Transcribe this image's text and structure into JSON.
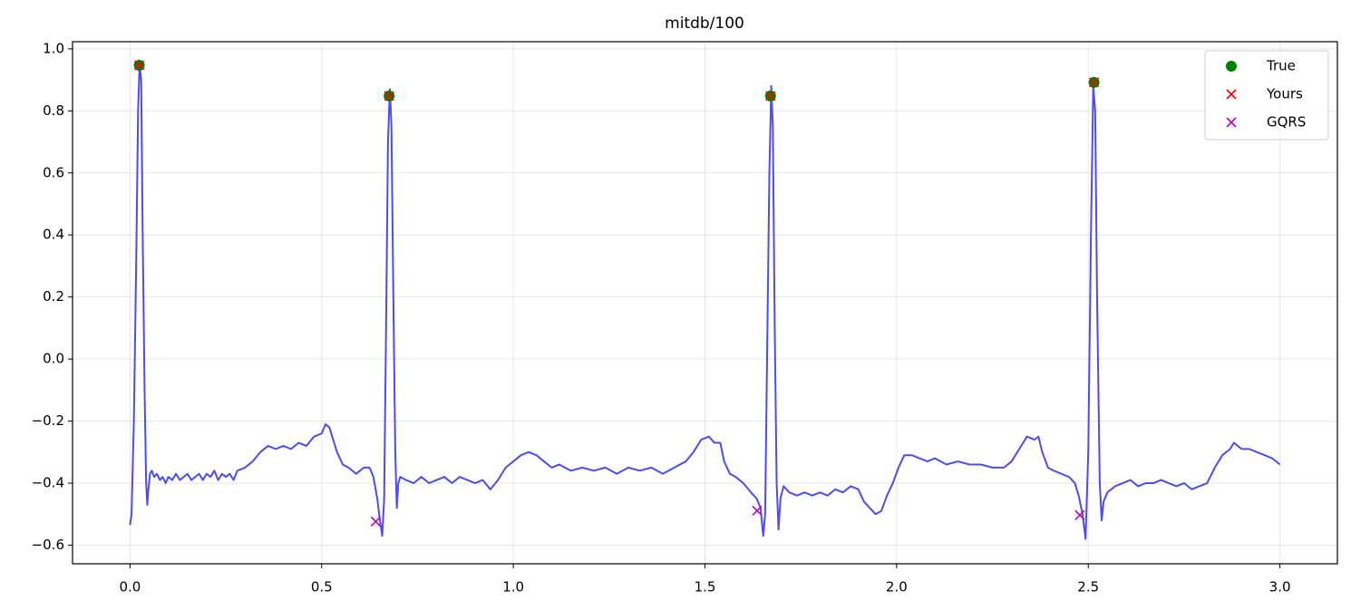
{
  "chart_data": {
    "type": "line",
    "title": "mitdb/100",
    "color": "#4c4cf5",
    "grid": true,
    "legend": "upper right",
    "xlim": [
      -0.15,
      3.15
    ],
    "ylim": [
      -0.66,
      1.023
    ],
    "xticks": [
      {
        "value": 0,
        "label": "0.0"
      },
      0.5,
      {
        "value": 1,
        "label": "1.0"
      },
      1.5,
      {
        "value": 2,
        "label": "2.0"
      },
      2.5,
      {
        "value": 3,
        "label": "3.0"
      }
    ],
    "yticks": [
      {
        "value": -0.6,
        "label": "−0.6"
      },
      {
        "value": -0.4,
        "label": "−0.4"
      },
      {
        "value": -0.2,
        "label": "−0.2"
      },
      {
        "value": 0,
        "label": "0.0"
      },
      0.2,
      0.4,
      0.6,
      0.8,
      {
        "value": 1,
        "label": "1.0"
      }
    ],
    "x": [
      0.0,
      0.004,
      0.01,
      0.016,
      0.021,
      0.025,
      0.029,
      0.033,
      0.038,
      0.042,
      0.045,
      0.048,
      0.052,
      0.057,
      0.063,
      0.07,
      0.078,
      0.085,
      0.093,
      0.1,
      0.11,
      0.12,
      0.13,
      0.14,
      0.15,
      0.16,
      0.17,
      0.18,
      0.19,
      0.2,
      0.21,
      0.22,
      0.23,
      0.24,
      0.25,
      0.26,
      0.27,
      0.28,
      0.3,
      0.32,
      0.34,
      0.36,
      0.38,
      0.4,
      0.42,
      0.44,
      0.46,
      0.48,
      0.5,
      0.51,
      0.52,
      0.53,
      0.54,
      0.555,
      0.57,
      0.59,
      0.61,
      0.625,
      0.635,
      0.645,
      0.652,
      0.658,
      0.663,
      0.668,
      0.673,
      0.678,
      0.682,
      0.687,
      0.692,
      0.696,
      0.7,
      0.705,
      0.72,
      0.74,
      0.76,
      0.78,
      0.8,
      0.82,
      0.84,
      0.86,
      0.88,
      0.9,
      0.92,
      0.94,
      0.96,
      0.98,
      1.0,
      1.02,
      1.04,
      1.06,
      1.08,
      1.1,
      1.12,
      1.15,
      1.18,
      1.21,
      1.24,
      1.27,
      1.3,
      1.33,
      1.36,
      1.39,
      1.42,
      1.45,
      1.47,
      1.49,
      1.51,
      1.525,
      1.54,
      1.55,
      1.565,
      1.58,
      1.6,
      1.62,
      1.635,
      1.645,
      1.652,
      1.657,
      1.662,
      1.668,
      1.673,
      1.677,
      1.682,
      1.687,
      1.692,
      1.697,
      1.705,
      1.72,
      1.74,
      1.76,
      1.78,
      1.8,
      1.82,
      1.84,
      1.86,
      1.88,
      1.9,
      1.915,
      1.93,
      1.945,
      1.96,
      1.975,
      1.99,
      2.005,
      2.02,
      2.04,
      2.06,
      2.08,
      2.1,
      2.13,
      2.16,
      2.19,
      2.22,
      2.25,
      2.28,
      2.3,
      2.32,
      2.34,
      2.36,
      2.37,
      2.38,
      2.395,
      2.41,
      2.43,
      2.45,
      2.465,
      2.475,
      2.485,
      2.493,
      2.5,
      2.507,
      2.513,
      2.518,
      2.523,
      2.53,
      2.535,
      2.54,
      2.55,
      2.57,
      2.59,
      2.61,
      2.63,
      2.65,
      2.67,
      2.69,
      2.71,
      2.73,
      2.75,
      2.77,
      2.79,
      2.81,
      2.83,
      2.85,
      2.87,
      2.88,
      2.9,
      2.92,
      2.94,
      2.96,
      2.98,
      3.0
    ],
    "values": [
      -0.535,
      -0.5,
      -0.2,
      0.3,
      0.8,
      0.95,
      0.9,
      0.4,
      -0.1,
      -0.4,
      -0.47,
      -0.42,
      -0.37,
      -0.36,
      -0.38,
      -0.37,
      -0.39,
      -0.38,
      -0.4,
      -0.38,
      -0.39,
      -0.37,
      -0.39,
      -0.38,
      -0.37,
      -0.39,
      -0.38,
      -0.37,
      -0.39,
      -0.37,
      -0.38,
      -0.36,
      -0.39,
      -0.37,
      -0.38,
      -0.37,
      -0.39,
      -0.36,
      -0.35,
      -0.33,
      -0.3,
      -0.28,
      -0.29,
      -0.28,
      -0.29,
      -0.27,
      -0.28,
      -0.25,
      -0.24,
      -0.21,
      -0.22,
      -0.26,
      -0.3,
      -0.34,
      -0.35,
      -0.37,
      -0.35,
      -0.35,
      -0.38,
      -0.45,
      -0.52,
      -0.57,
      -0.45,
      0.1,
      0.7,
      0.87,
      0.75,
      0.2,
      -0.3,
      -0.48,
      -0.4,
      -0.38,
      -0.39,
      -0.4,
      -0.38,
      -0.4,
      -0.39,
      -0.38,
      -0.4,
      -0.38,
      -0.39,
      -0.4,
      -0.39,
      -0.42,
      -0.39,
      -0.35,
      -0.33,
      -0.31,
      -0.3,
      -0.31,
      -0.33,
      -0.35,
      -0.34,
      -0.36,
      -0.35,
      -0.36,
      -0.35,
      -0.37,
      -0.35,
      -0.36,
      -0.35,
      -0.37,
      -0.35,
      -0.33,
      -0.3,
      -0.26,
      -0.25,
      -0.27,
      -0.27,
      -0.33,
      -0.37,
      -0.38,
      -0.4,
      -0.43,
      -0.45,
      -0.48,
      -0.57,
      -0.5,
      0.0,
      0.6,
      0.88,
      0.75,
      0.1,
      -0.4,
      -0.55,
      -0.45,
      -0.41,
      -0.43,
      -0.44,
      -0.43,
      -0.44,
      -0.43,
      -0.44,
      -0.42,
      -0.43,
      -0.41,
      -0.42,
      -0.46,
      -0.48,
      -0.5,
      -0.49,
      -0.44,
      -0.4,
      -0.35,
      -0.31,
      -0.31,
      -0.32,
      -0.33,
      -0.32,
      -0.34,
      -0.33,
      -0.34,
      -0.34,
      -0.35,
      -0.35,
      -0.33,
      -0.29,
      -0.25,
      -0.26,
      -0.25,
      -0.3,
      -0.35,
      -0.36,
      -0.37,
      -0.38,
      -0.4,
      -0.44,
      -0.5,
      -0.58,
      -0.3,
      0.4,
      0.88,
      0.8,
      0.2,
      -0.4,
      -0.52,
      -0.46,
      -0.43,
      -0.41,
      -0.4,
      -0.39,
      -0.41,
      -0.4,
      -0.4,
      -0.39,
      -0.4,
      -0.41,
      -0.4,
      -0.42,
      -0.41,
      -0.4,
      -0.35,
      -0.31,
      -0.29,
      -0.27,
      -0.29,
      -0.29,
      -0.3,
      -0.31,
      -0.32,
      -0.34
    ],
    "markers": [
      {
        "name": "True",
        "color": "#008000",
        "marker": "o",
        "x": [
          0.024,
          0.676,
          1.671,
          2.515
        ],
        "values": [
          0.947,
          0.848,
          0.848,
          0.892
        ]
      },
      {
        "name": "Yours",
        "color": "#ff0000",
        "marker": "x",
        "x": [
          0.024,
          0.676,
          1.671,
          2.515
        ],
        "values": [
          0.947,
          0.848,
          0.848,
          0.892
        ]
      },
      {
        "name": "GQRS",
        "color": "#bf00bf",
        "marker": "x",
        "x": [
          0.641,
          1.636,
          2.478
        ],
        "values": [
          -0.524,
          -0.489,
          -0.503
        ]
      }
    ]
  }
}
